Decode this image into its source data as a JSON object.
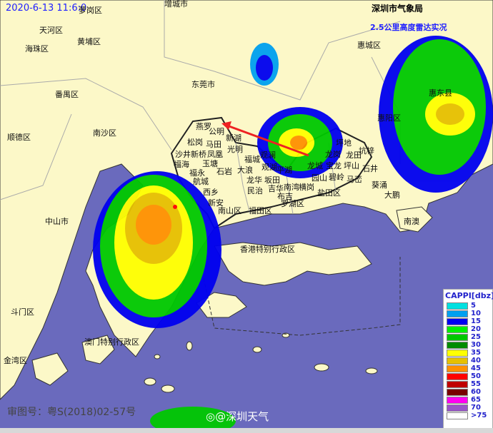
{
  "header": {
    "timestamp": "2020-6-13 11:6:0",
    "agency": "深圳市气象局",
    "product": "2.5公里高度雷达实况"
  },
  "legend": {
    "title": "CAPPI[dbz]",
    "items": [
      {
        "label": "5",
        "color": "#00e0e0"
      },
      {
        "label": "10",
        "color": "#00a0f0"
      },
      {
        "label": "15",
        "color": "#0000f0"
      },
      {
        "label": "20",
        "color": "#00f000"
      },
      {
        "label": "25",
        "color": "#00c800"
      },
      {
        "label": "30",
        "color": "#008c00"
      },
      {
        "label": "35",
        "color": "#ffff00"
      },
      {
        "label": "40",
        "color": "#e6c000"
      },
      {
        "label": "45",
        "color": "#ff9000"
      },
      {
        "label": "50",
        "color": "#ff0000"
      },
      {
        "label": "55",
        "color": "#c00000"
      },
      {
        "label": "60",
        "color": "#780000"
      },
      {
        "label": "65",
        "color": "#ff00f0"
      },
      {
        "label": "70",
        "color": "#9955c9"
      },
      {
        "label": ">75",
        "color": "#ffffff"
      }
    ]
  },
  "labels": [
    "萝岗区",
    "增城市",
    "天河区",
    "海珠区",
    "黄埔区",
    "惠城区",
    "番禺区",
    "东莞市",
    "惠东县",
    "顺德区",
    "南沙区",
    "惠阳区",
    "中山市",
    "斗门区",
    "金湾区",
    "澳门特别行政区",
    "香港特别行政区",
    "南澳",
    "葵涌",
    "大鹏",
    "南山区",
    "福田区",
    "罗湖区",
    "盐田区",
    "西乡",
    "新安",
    "航城",
    "福永",
    "福海",
    "沙井",
    "新桥",
    "松岗",
    "燕罗",
    "公明",
    "新湖",
    "马田",
    "光明",
    "凤凰",
    "玉塘",
    "石岩",
    "福城",
    "观澜",
    "观湖",
    "大浪",
    "龙华",
    "民治",
    "坂田",
    "平湖",
    "吉华",
    "南湾",
    "横岗",
    "布吉",
    "龙城",
    "宝龙",
    "龙岗",
    "坪地",
    "坑梓",
    "龙田",
    "坪山",
    "石井",
    "园山",
    "碧岭",
    "马峦"
  ],
  "footer": {
    "map_approval": "审图号：粤S(2018)02-57号",
    "watermark": "@深圳天气"
  },
  "colors": {
    "sea": "#6a6abd",
    "land": "#fcf8c8",
    "arrow": "#ee2222"
  }
}
